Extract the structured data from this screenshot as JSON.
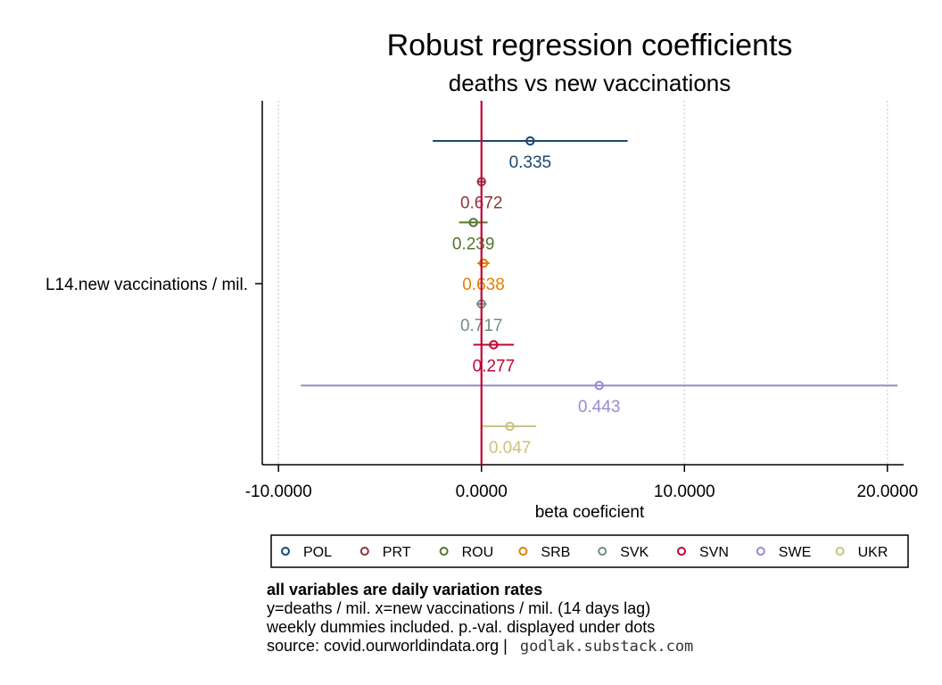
{
  "chart_data": {
    "type": "scatter",
    "title": "Robust regression coefficients",
    "subtitle": "deaths vs new vaccinations",
    "xlabel": "beta coeficient",
    "ylabel": "",
    "y_category": "L14.new vaccinations / mil.",
    "xlim": [
      -10.8,
      20.8
    ],
    "x_ticks": [
      -10,
      0,
      10,
      20
    ],
    "x_tick_labels": [
      "-10.0000",
      "0.0000",
      "10.0000",
      "20.0000"
    ],
    "reference_line_x": 0,
    "grid": "vertical dotted at ticks",
    "legend_position": "bottom",
    "series": [
      {
        "name": "POL",
        "color": "#1a476f",
        "coef": 2.4,
        "ci": [
          -2.4,
          7.2
        ],
        "pval": "0.335"
      },
      {
        "name": "PRT",
        "color": "#90353b",
        "coef": 0.0,
        "ci": [
          -0.2,
          0.2
        ],
        "pval": "0.672"
      },
      {
        "name": "ROU",
        "color": "#55752f",
        "coef": -0.4,
        "ci": [
          -1.1,
          0.3
        ],
        "pval": "0.239"
      },
      {
        "name": "SRB",
        "color": "#e37e00",
        "coef": 0.1,
        "ci": [
          -0.2,
          0.4
        ],
        "pval": "0.638"
      },
      {
        "name": "SVK",
        "color": "#6e8e84",
        "coef": 0.0,
        "ci": [
          -0.25,
          0.25
        ],
        "pval": "0.717"
      },
      {
        "name": "SVN",
        "color": "#c10534",
        "coef": 0.6,
        "ci": [
          -0.4,
          1.6
        ],
        "pval": "0.277"
      },
      {
        "name": "SWE",
        "color": "#938dd2",
        "coef": 5.8,
        "ci": [
          -8.9,
          20.5
        ],
        "pval": "0.443"
      },
      {
        "name": "UKR",
        "color": "#cac27e",
        "coef": 1.4,
        "ci": [
          0.0,
          2.7
        ],
        "pval": "0.047"
      }
    ],
    "ref_line_color": "#c10534"
  },
  "notes": {
    "line1": "all variables are daily variation rates",
    "line2": "y=deaths / mil. x=new vaccinations / mil. (14 days lag)",
    "line3": "weekly dummies included. p.-val. displayed under dots",
    "line4": "source: covid.ourworldindata.org |",
    "link": "godlak.substack.com"
  }
}
